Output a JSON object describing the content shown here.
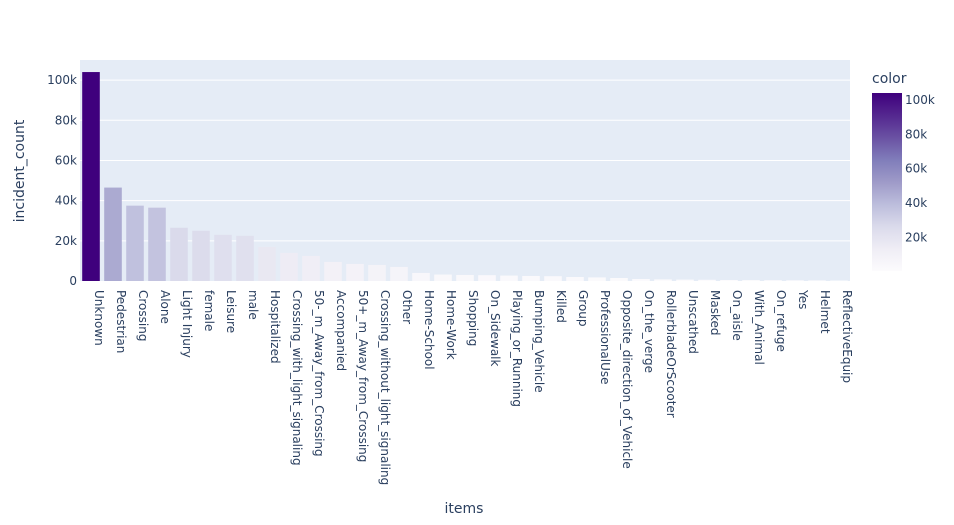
{
  "chart_data": {
    "type": "bar",
    "xlabel": "items",
    "ylabel": "incident_count",
    "ylim": [
      0,
      110000
    ],
    "yticks": [
      0,
      20000,
      40000,
      60000,
      80000,
      100000
    ],
    "ytick_labels": [
      "0",
      "20k",
      "40k",
      "60k",
      "80k",
      "100k"
    ],
    "grid": true,
    "legend": "colorbar right",
    "colorbar": {
      "title": "color",
      "range": [
        500,
        104000
      ],
      "ticks": [
        20000,
        40000,
        60000,
        80000,
        100000
      ],
      "tick_labels": [
        "20k",
        "40k",
        "60k",
        "80k",
        "100k"
      ],
      "colorscale": [
        "#fcfbfd",
        "#efedf5",
        "#dadaeb",
        "#bcbddc",
        "#9e9ac8",
        "#807dba",
        "#6a51a3",
        "#54278f",
        "#3f007d"
      ]
    },
    "categories": [
      "Unknown",
      "Pedestrian",
      "Crossing",
      "Alone",
      "Light Injury",
      "female",
      "Leisure",
      "male",
      "Hospitalized",
      "Crossing_with_light_signaling",
      "50-_m_Away_from_Crossing",
      "Accompanied",
      "50+_m_Away_from_Crossing",
      "Crossing_without_light_signaling",
      "Other",
      "Home-School",
      "Home-Work",
      "Shopping",
      "On_Sidewalk",
      "Playing_or_Running",
      "Bumping_Vehicle",
      "Killed",
      "Group",
      "ProfessionalUse",
      "Opposite_direction_of_Vehicle",
      "On_the_verge",
      "RollerbladeOrScooter",
      "Unscathed",
      "Masked",
      "On_aisle",
      "With_Animal",
      "On_refuge",
      "Yes",
      "Helmet",
      "ReflectiveEquip"
    ],
    "values": [
      104000,
      46500,
      37500,
      36500,
      26500,
      25000,
      23000,
      22500,
      17000,
      14000,
      12500,
      9500,
      8500,
      8000,
      7000,
      4000,
      3200,
      3000,
      2900,
      2700,
      2500,
      2400,
      2000,
      1800,
      1500,
      1000,
      800,
      700,
      600,
      500,
      450,
      400,
      350,
      300,
      250
    ]
  }
}
